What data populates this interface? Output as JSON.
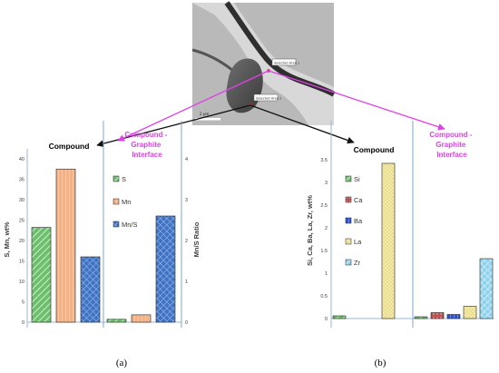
{
  "micrograph": {
    "label_1": "Selected Area 1",
    "label_2": "Selected Area 2",
    "scale_bar": "2 µm"
  },
  "panel_labels": {
    "a": "(a)",
    "b": "(b)"
  },
  "colors": {
    "magenta": "#e040e8",
    "arrow_black": "#111111",
    "divider": "#7ba7d4",
    "s_fill": "#6cc06c",
    "mn_fill": "#f4b183",
    "mns_fill": "#3f73c4",
    "si_fill": "#6cc06c",
    "ca_fill": "#c0504d",
    "ba_fill": "#2f55d4",
    "la_fill": "#f5eba6",
    "zr_fill": "#8fd2ee"
  },
  "chart_data": [
    {
      "type": "bar",
      "title": "",
      "groups": [
        "Compound",
        "Compound - Graphite Interface"
      ],
      "ylabel": "S, Mn, wt%",
      "ylabel_right": "Mn/S Ratio",
      "ylim": [
        0,
        40
      ],
      "ylim_right": [
        0,
        4
      ],
      "yticks": [
        "0",
        "5",
        "10",
        "15",
        "20",
        "25",
        "30",
        "35",
        "40"
      ],
      "yticks_right": [
        "0",
        "1",
        "2",
        "3",
        "4"
      ],
      "series": [
        {
          "name": "S",
          "axis": "left",
          "values": [
            23.2,
            0.7
          ]
        },
        {
          "name": "Mn",
          "axis": "left",
          "values": [
            37.5,
            1.8
          ]
        },
        {
          "name": "Mn/S",
          "axis": "right",
          "values": [
            1.6,
            2.6
          ]
        }
      ],
      "legend": [
        "S",
        "Mn",
        "Mn/S"
      ],
      "legend_position": "inside, second group"
    },
    {
      "type": "bar",
      "title": "",
      "groups": [
        "Compound",
        "Compound - Graphite Interface"
      ],
      "ylabel": "Si, Ca, Ba, La, Zr, wt%",
      "ylim": [
        0,
        3.5
      ],
      "yticks": [
        "0",
        "0.5",
        "1",
        "1.5",
        "2",
        "2.5",
        "3",
        "3.5"
      ],
      "series": [
        {
          "name": "Si",
          "values": [
            0.06,
            0.04
          ]
        },
        {
          "name": "Ca",
          "values": [
            0.0,
            0.13
          ]
        },
        {
          "name": "Ba",
          "values": [
            0.0,
            0.09
          ]
        },
        {
          "name": "La",
          "values": [
            3.42,
            0.27
          ]
        },
        {
          "name": "Zr",
          "values": [
            0.0,
            1.32
          ]
        }
      ],
      "legend": [
        "Si",
        "Ca",
        "Ba",
        "La",
        "Zr"
      ],
      "legend_position": "inside, first group"
    }
  ]
}
